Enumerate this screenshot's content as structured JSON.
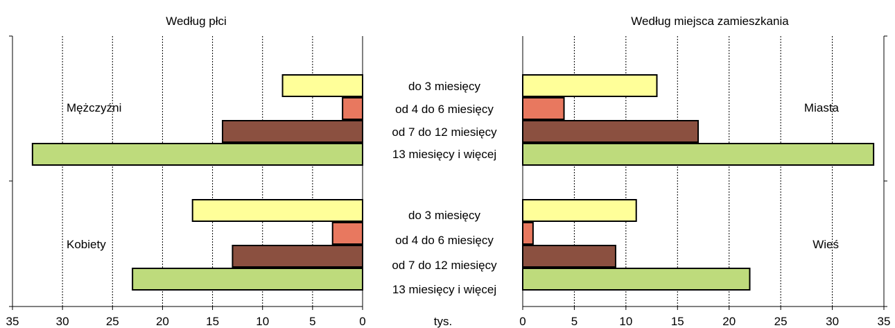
{
  "unit_label": "tys.",
  "category_labels": [
    "do 3 miesięcy",
    "od 4 do 6 miesięcy",
    "od 7 do 12 miesięcy",
    "13 miesięcy i więcej"
  ],
  "colors": {
    "do 3 miesięcy": "#ffff99",
    "od 4 do 6 miesięcy": "#e8785f",
    "od 7 do 12 miesięcy": "#8b5040",
    "13 miesięcy i więcej": "#bedb7c"
  },
  "chart_data": [
    {
      "type": "bar",
      "orientation": "horizontal-reversed",
      "title": "Według płci",
      "xlim": [
        0,
        35
      ],
      "xticks": [
        35,
        30,
        25,
        20,
        15,
        10,
        5,
        0
      ],
      "grid": true,
      "categories": [
        "do 3 miesięcy",
        "od 4 do 6 miesięcy",
        "od 7 do 12 miesięcy",
        "13 miesięcy i więcej"
      ],
      "groups": [
        {
          "name": "Mężczyźni",
          "values": [
            8,
            2,
            14,
            33
          ]
        },
        {
          "name": "Kobiety",
          "values": [
            17,
            3,
            13,
            23
          ]
        }
      ]
    },
    {
      "type": "bar",
      "orientation": "horizontal",
      "title": "Według miejsca zamieszkania",
      "xlim": [
        0,
        35
      ],
      "xticks": [
        0,
        5,
        10,
        15,
        20,
        25,
        30,
        35
      ],
      "grid": true,
      "categories": [
        "do 3 miesięcy",
        "od 4 do 6 miesięcy",
        "od 7 do 12 miesięcy",
        "13 miesięcy i więcej"
      ],
      "groups": [
        {
          "name": "Miasta",
          "values": [
            13,
            4,
            17,
            34
          ]
        },
        {
          "name": "Wieś",
          "values": [
            11,
            1,
            9,
            22
          ]
        }
      ]
    }
  ]
}
